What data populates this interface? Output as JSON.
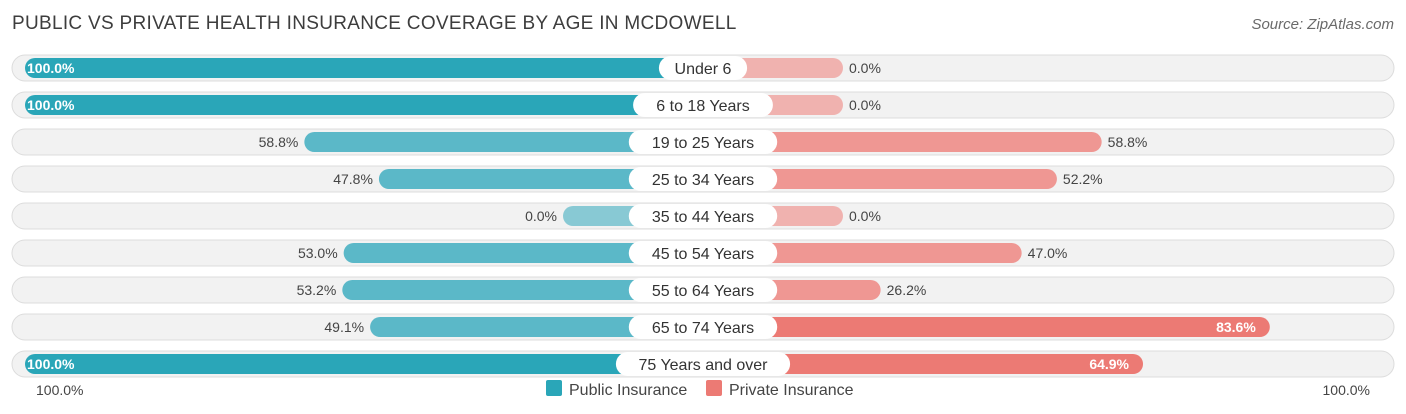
{
  "chart_data": {
    "type": "bar",
    "orientation": "horizontal-diverging",
    "title": "PUBLIC VS PRIVATE HEALTH INSURANCE COVERAGE BY AGE IN MCDOWELL",
    "source": "Source: ZipAtlas.com",
    "categories": [
      "Under 6",
      "6 to 18 Years",
      "19 to 25 Years",
      "25 to 34 Years",
      "35 to 44 Years",
      "45 to 54 Years",
      "55 to 64 Years",
      "65 to 74 Years",
      "75 Years and over"
    ],
    "series": [
      {
        "name": "Public Insurance",
        "values": [
          100.0,
          100.0,
          58.8,
          47.8,
          0.0,
          53.0,
          53.2,
          49.1,
          100.0
        ],
        "labels": [
          "100.0%",
          "100.0%",
          "58.8%",
          "47.8%",
          "0.0%",
          "53.0%",
          "53.2%",
          "49.1%",
          "100.0%"
        ]
      },
      {
        "name": "Private Insurance",
        "values": [
          0.0,
          0.0,
          58.8,
          52.2,
          0.0,
          47.0,
          26.2,
          83.6,
          64.9
        ],
        "labels": [
          "0.0%",
          "0.0%",
          "58.8%",
          "52.2%",
          "0.0%",
          "47.0%",
          "26.2%",
          "83.6%",
          "64.9%"
        ]
      }
    ],
    "axis_labels": {
      "left": "100.0%",
      "right": "100.0%"
    },
    "xlim": [
      0,
      100
    ],
    "colors": {
      "public": "#5bb8c8",
      "public_strong": "#2aa6b8",
      "private": "#ef9793",
      "private_strong": "#ec7a74",
      "row_bg": "#f2f2f2",
      "row_border": "#dcdcdc"
    },
    "legend": {
      "position": "bottom-center"
    },
    "grid": false
  }
}
